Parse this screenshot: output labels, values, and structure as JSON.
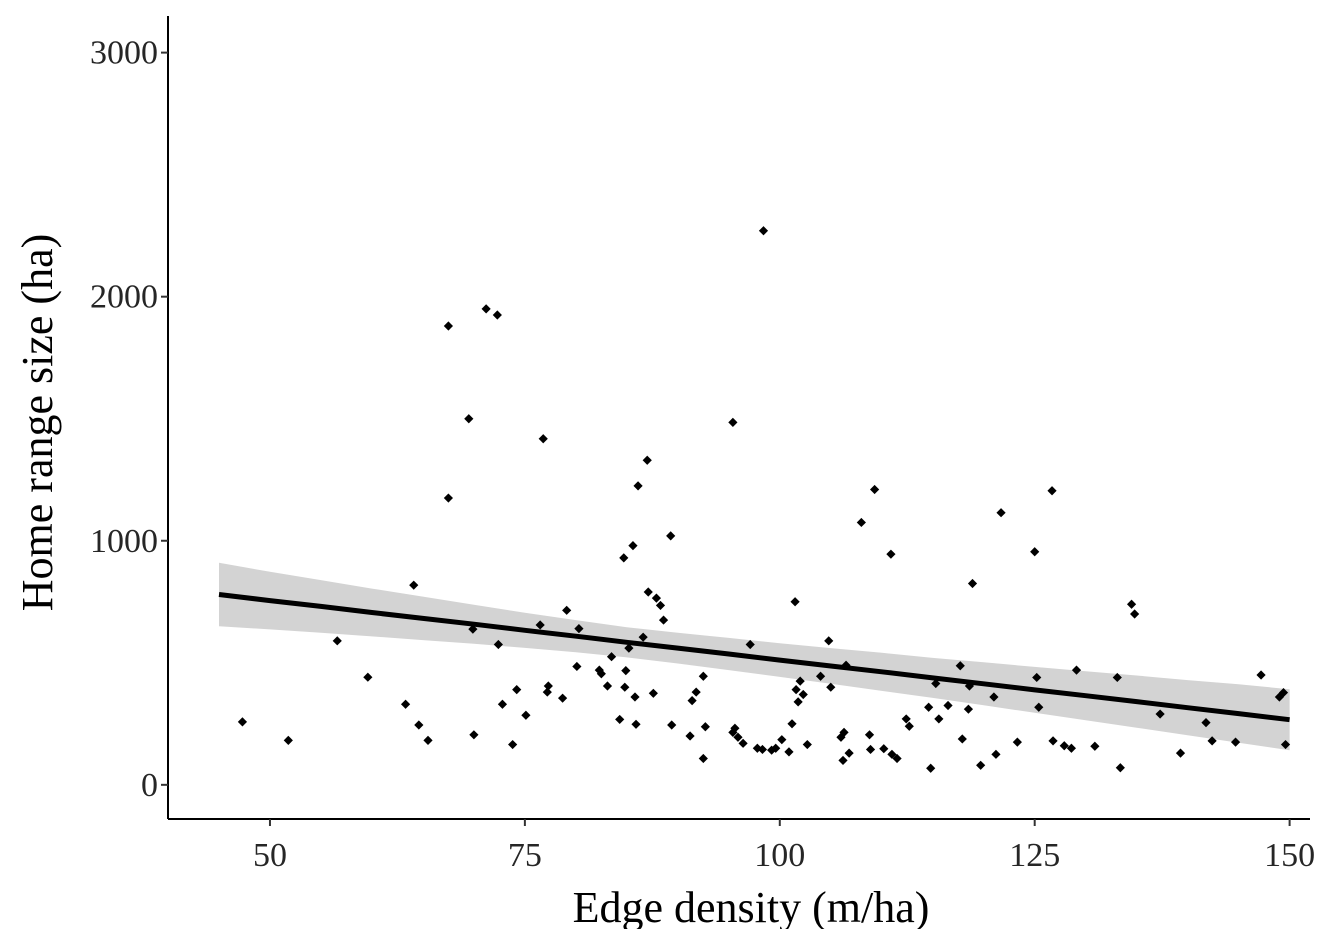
{
  "chart_data": {
    "type": "scatter",
    "title": "",
    "xlabel": "Edge density (m/ha)",
    "ylabel": "Home range size (ha)",
    "xlim": [
      40,
      152
    ],
    "ylim": [
      -140,
      3150
    ],
    "x_ticks": [
      50,
      75,
      100,
      125,
      150
    ],
    "y_ticks": [
      0,
      1000,
      2000,
      3000
    ],
    "x_tick_labels": [
      "50",
      "75",
      "100",
      "125",
      "150"
    ],
    "y_tick_labels": [
      "0",
      "1000",
      "2000",
      "3000"
    ],
    "grid": false,
    "legend": "none",
    "point_color": "#000000",
    "line_color": "#000000",
    "band_color": "#d3d3d3",
    "fit": {
      "x": [
        45,
        50,
        55,
        60,
        65,
        70,
        75,
        80,
        85,
        90,
        95,
        100,
        105,
        110,
        115,
        120,
        125,
        130,
        135,
        140,
        145,
        150
      ],
      "y": [
        780,
        755,
        731,
        706,
        682,
        658,
        633,
        609,
        584,
        560,
        536,
        511,
        487,
        463,
        438,
        414,
        389,
        365,
        341,
        316,
        292,
        267
      ],
      "lower": [
        650,
        637,
        623,
        608,
        593,
        578,
        561,
        543,
        522,
        497,
        470,
        442,
        414,
        385,
        356,
        326,
        295,
        265,
        234,
        203,
        172,
        142
      ],
      "upper": [
        910,
        873,
        839,
        804,
        771,
        738,
        705,
        675,
        646,
        623,
        602,
        580,
        560,
        541,
        520,
        502,
        483,
        465,
        448,
        429,
        412,
        392
      ]
    },
    "points": [
      {
        "x": 47.3,
        "y": 258
      },
      {
        "x": 51.8,
        "y": 182
      },
      {
        "x": 56.6,
        "y": 590
      },
      {
        "x": 59.6,
        "y": 441
      },
      {
        "x": 63.3,
        "y": 330
      },
      {
        "x": 64.1,
        "y": 818
      },
      {
        "x": 64.6,
        "y": 245
      },
      {
        "x": 65.5,
        "y": 182
      },
      {
        "x": 67.5,
        "y": 1880
      },
      {
        "x": 67.5,
        "y": 1175
      },
      {
        "x": 69.5,
        "y": 1500
      },
      {
        "x": 69.9,
        "y": 638
      },
      {
        "x": 70.0,
        "y": 205
      },
      {
        "x": 71.2,
        "y": 1950
      },
      {
        "x": 72.3,
        "y": 1925
      },
      {
        "x": 72.4,
        "y": 575
      },
      {
        "x": 72.8,
        "y": 330
      },
      {
        "x": 73.8,
        "y": 165
      },
      {
        "x": 74.2,
        "y": 390
      },
      {
        "x": 75.1,
        "y": 285
      },
      {
        "x": 76.5,
        "y": 655
      },
      {
        "x": 76.8,
        "y": 1418
      },
      {
        "x": 77.2,
        "y": 380
      },
      {
        "x": 77.3,
        "y": 405
      },
      {
        "x": 78.7,
        "y": 355
      },
      {
        "x": 79.1,
        "y": 715
      },
      {
        "x": 80.1,
        "y": 485
      },
      {
        "x": 80.3,
        "y": 640
      },
      {
        "x": 82.3,
        "y": 470
      },
      {
        "x": 82.5,
        "y": 455
      },
      {
        "x": 83.1,
        "y": 405
      },
      {
        "x": 83.5,
        "y": 525
      },
      {
        "x": 84.3,
        "y": 268
      },
      {
        "x": 84.7,
        "y": 930
      },
      {
        "x": 84.8,
        "y": 400
      },
      {
        "x": 84.9,
        "y": 468
      },
      {
        "x": 85.2,
        "y": 560
      },
      {
        "x": 85.6,
        "y": 980
      },
      {
        "x": 85.8,
        "y": 360
      },
      {
        "x": 85.9,
        "y": 248
      },
      {
        "x": 86.1,
        "y": 1225
      },
      {
        "x": 86.6,
        "y": 605
      },
      {
        "x": 87.0,
        "y": 1330
      },
      {
        "x": 87.1,
        "y": 790
      },
      {
        "x": 87.6,
        "y": 375
      },
      {
        "x": 87.9,
        "y": 765
      },
      {
        "x": 88.3,
        "y": 735
      },
      {
        "x": 88.6,
        "y": 675
      },
      {
        "x": 89.3,
        "y": 1020
      },
      {
        "x": 89.4,
        "y": 245
      },
      {
        "x": 91.2,
        "y": 200
      },
      {
        "x": 91.4,
        "y": 345
      },
      {
        "x": 91.8,
        "y": 380
      },
      {
        "x": 92.5,
        "y": 445
      },
      {
        "x": 92.5,
        "y": 108
      },
      {
        "x": 92.7,
        "y": 238
      },
      {
        "x": 95.4,
        "y": 1485
      },
      {
        "x": 95.4,
        "y": 215
      },
      {
        "x": 95.6,
        "y": 232
      },
      {
        "x": 95.9,
        "y": 195
      },
      {
        "x": 96.4,
        "y": 170
      },
      {
        "x": 97.1,
        "y": 575
      },
      {
        "x": 97.8,
        "y": 150
      },
      {
        "x": 98.3,
        "y": 145
      },
      {
        "x": 98.4,
        "y": 2270
      },
      {
        "x": 99.2,
        "y": 142
      },
      {
        "x": 99.6,
        "y": 150
      },
      {
        "x": 100.2,
        "y": 185
      },
      {
        "x": 100.9,
        "y": 135
      },
      {
        "x": 101.2,
        "y": 250
      },
      {
        "x": 101.5,
        "y": 750
      },
      {
        "x": 101.6,
        "y": 390
      },
      {
        "x": 101.8,
        "y": 340
      },
      {
        "x": 102.0,
        "y": 425
      },
      {
        "x": 102.3,
        "y": 370
      },
      {
        "x": 102.7,
        "y": 165
      },
      {
        "x": 104.0,
        "y": 445
      },
      {
        "x": 104.8,
        "y": 590
      },
      {
        "x": 105.0,
        "y": 400
      },
      {
        "x": 106.0,
        "y": 195
      },
      {
        "x": 106.2,
        "y": 100
      },
      {
        "x": 106.3,
        "y": 215
      },
      {
        "x": 106.5,
        "y": 490
      },
      {
        "x": 106.8,
        "y": 130
      },
      {
        "x": 108.0,
        "y": 1075
      },
      {
        "x": 108.8,
        "y": 205
      },
      {
        "x": 108.9,
        "y": 145
      },
      {
        "x": 109.3,
        "y": 1210
      },
      {
        "x": 110.2,
        "y": 148
      },
      {
        "x": 110.9,
        "y": 945
      },
      {
        "x": 111.0,
        "y": 125
      },
      {
        "x": 111.5,
        "y": 108
      },
      {
        "x": 112.4,
        "y": 270
      },
      {
        "x": 112.7,
        "y": 240
      },
      {
        "x": 114.6,
        "y": 318
      },
      {
        "x": 114.8,
        "y": 68
      },
      {
        "x": 115.3,
        "y": 415
      },
      {
        "x": 115.6,
        "y": 270
      },
      {
        "x": 116.5,
        "y": 325
      },
      {
        "x": 117.7,
        "y": 488
      },
      {
        "x": 117.9,
        "y": 188
      },
      {
        "x": 118.5,
        "y": 310
      },
      {
        "x": 118.6,
        "y": 405
      },
      {
        "x": 118.9,
        "y": 825
      },
      {
        "x": 119.7,
        "y": 80
      },
      {
        "x": 121.0,
        "y": 360
      },
      {
        "x": 121.2,
        "y": 125
      },
      {
        "x": 121.7,
        "y": 1115
      },
      {
        "x": 123.3,
        "y": 175
      },
      {
        "x": 125.0,
        "y": 955
      },
      {
        "x": 125.2,
        "y": 440
      },
      {
        "x": 125.4,
        "y": 318
      },
      {
        "x": 126.7,
        "y": 1205
      },
      {
        "x": 126.8,
        "y": 180
      },
      {
        "x": 127.9,
        "y": 160
      },
      {
        "x": 128.6,
        "y": 150
      },
      {
        "x": 129.1,
        "y": 470
      },
      {
        "x": 130.9,
        "y": 158
      },
      {
        "x": 133.1,
        "y": 440
      },
      {
        "x": 133.4,
        "y": 70
      },
      {
        "x": 134.5,
        "y": 740
      },
      {
        "x": 134.8,
        "y": 700
      },
      {
        "x": 137.3,
        "y": 290
      },
      {
        "x": 139.3,
        "y": 130
      },
      {
        "x": 141.8,
        "y": 255
      },
      {
        "x": 142.4,
        "y": 180
      },
      {
        "x": 144.7,
        "y": 175
      },
      {
        "x": 147.2,
        "y": 450
      },
      {
        "x": 149.0,
        "y": 360
      },
      {
        "x": 149.4,
        "y": 378
      },
      {
        "x": 149.6,
        "y": 165
      }
    ]
  }
}
